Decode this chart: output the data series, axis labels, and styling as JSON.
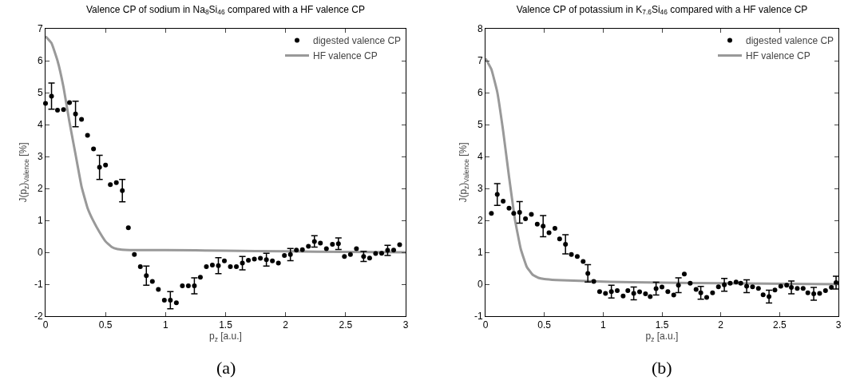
{
  "chart_data": [
    {
      "type": "scatter",
      "title": "Valence CP of sodium in Na$_{8}$Si$_{46}$ compared with a HF valence CP",
      "xlabel": "p$_{z}$ [a.u.]",
      "ylabel": "J(p$_{z}$)$_{Valence}$ [%]",
      "annotations": [
        "(a)"
      ],
      "xlim": [
        0,
        3
      ],
      "xticks": [
        0,
        0.5,
        1,
        1.5,
        2,
        2.5,
        3
      ],
      "ylim": [
        -2,
        7
      ],
      "yticks": [
        -2,
        -1,
        0,
        1,
        2,
        3,
        4,
        5,
        6,
        7
      ],
      "grid": false,
      "legend": "top right",
      "series": [
        {
          "name": "digested valence CP",
          "type": "scatter",
          "marker": "circle",
          "color": "#000000",
          "x": [
            0,
            0.05,
            0.1,
            0.15,
            0.2,
            0.25,
            0.3,
            0.35,
            0.4,
            0.45,
            0.5,
            0.54,
            0.59,
            0.64,
            0.69,
            0.74,
            0.79,
            0.84,
            0.89,
            0.94,
            0.99,
            1.04,
            1.09,
            1.14,
            1.19,
            1.24,
            1.29,
            1.34,
            1.39,
            1.44,
            1.49,
            1.54,
            1.59,
            1.64,
            1.69,
            1.74,
            1.79,
            1.84,
            1.89,
            1.94,
            1.99,
            2.04,
            2.09,
            2.14,
            2.19,
            2.24,
            2.29,
            2.34,
            2.39,
            2.44,
            2.49,
            2.54,
            2.59,
            2.65,
            2.7,
            2.75,
            2.8,
            2.85,
            2.9,
            2.95
          ],
          "values": [
            4.66,
            4.89,
            4.45,
            4.47,
            4.69,
            4.33,
            4.16,
            3.66,
            3.24,
            2.66,
            2.73,
            2.12,
            2.18,
            1.93,
            0.77,
            -0.07,
            -0.45,
            -0.73,
            -0.91,
            -1.16,
            -1.5,
            -1.5,
            -1.58,
            -1.05,
            -1.05,
            -1.05,
            -0.78,
            -0.45,
            -0.4,
            -0.42,
            -0.27,
            -0.45,
            -0.45,
            -0.34,
            -0.25,
            -0.21,
            -0.19,
            -0.23,
            -0.27,
            -0.34,
            -0.1,
            -0.07,
            0.07,
            0.08,
            0.19,
            0.34,
            0.29,
            0.11,
            0.25,
            0.27,
            -0.13,
            -0.07,
            0.11,
            -0.13,
            -0.18,
            -0.04,
            -0.03,
            0.06,
            0.07,
            0.24
          ],
          "errors": [
            null,
            0.41,
            null,
            null,
            null,
            0.4,
            null,
            null,
            null,
            0.38,
            null,
            null,
            null,
            0.35,
            null,
            null,
            null,
            0.3,
            null,
            null,
            null,
            0.27,
            null,
            null,
            null,
            0.25,
            null,
            null,
            null,
            0.25,
            null,
            null,
            null,
            0.21,
            null,
            null,
            null,
            0.2,
            null,
            null,
            null,
            0.19,
            null,
            null,
            null,
            0.18,
            null,
            null,
            null,
            0.18,
            null,
            null,
            null,
            0.16,
            null,
            null,
            null,
            0.16,
            null,
            null
          ]
        },
        {
          "name": "HF valence CP",
          "type": "line",
          "marker": "none",
          "line_style": "solid",
          "color": "#999999",
          "x": [
            0,
            0.05,
            0.1,
            0.15,
            0.2,
            0.25,
            0.3,
            0.35,
            0.4,
            0.45,
            0.5,
            0.55,
            0.6,
            0.7,
            1,
            1.5,
            2,
            2.5,
            3
          ],
          "values": [
            6.76,
            6.55,
            6,
            5.17,
            4.07,
            3.07,
            2.06,
            1.39,
            0.97,
            0.63,
            0.34,
            0.17,
            0.1,
            0.07,
            0.07,
            0.05,
            0.03,
            0.01,
            0
          ]
        }
      ]
    },
    {
      "type": "scatter",
      "title": "Valence CP of potassium in K$_{7.6}$Si$_{46}$ compared with a HF valence CP",
      "xlabel": "p$_{z}$ [a.u.]",
      "ylabel": "J(p$_{z}$)$_{Valence}$ [%]",
      "annotations": [
        "(b)"
      ],
      "xlim": [
        0,
        3
      ],
      "xticks": [
        0,
        0.5,
        1,
        1.5,
        2,
        2.5,
        3
      ],
      "ylim": [
        -1,
        8
      ],
      "yticks": [
        -1,
        0,
        1,
        2,
        3,
        4,
        5,
        6,
        7,
        8
      ],
      "grid": false,
      "legend": "top right",
      "series": [
        {
          "name": "digested valence CP",
          "type": "scatter",
          "marker": "circle",
          "color": "#000000",
          "x": [
            0.05,
            0.1,
            0.15,
            0.2,
            0.24,
            0.29,
            0.34,
            0.39,
            0.44,
            0.49,
            0.54,
            0.59,
            0.63,
            0.68,
            0.73,
            0.78,
            0.83,
            0.87,
            0.92,
            0.97,
            1.02,
            1.07,
            1.12,
            1.17,
            1.21,
            1.26,
            1.31,
            1.36,
            1.4,
            1.45,
            1.5,
            1.55,
            1.6,
            1.64,
            1.69,
            1.74,
            1.79,
            1.83,
            1.88,
            1.93,
            1.98,
            2.03,
            2.08,
            2.13,
            2.17,
            2.22,
            2.27,
            2.32,
            2.36,
            2.41,
            2.46,
            2.51,
            2.56,
            2.6,
            2.65,
            2.7,
            2.74,
            2.79,
            2.84,
            2.89,
            2.94,
            2.98
          ],
          "values": [
            2.22,
            2.81,
            2.6,
            2.38,
            2.22,
            2.25,
            2.05,
            2.19,
            1.88,
            1.82,
            1.61,
            1.75,
            1.42,
            1.25,
            0.93,
            0.87,
            0.71,
            0.34,
            0.09,
            -0.23,
            -0.29,
            -0.23,
            -0.2,
            -0.37,
            -0.2,
            -0.29,
            -0.24,
            -0.3,
            -0.39,
            -0.14,
            -0.09,
            -0.23,
            -0.34,
            -0.03,
            0.32,
            0.03,
            -0.16,
            -0.27,
            -0.41,
            -0.27,
            -0.08,
            -0.02,
            0.03,
            0.07,
            0.03,
            -0.06,
            -0.08,
            -0.13,
            -0.33,
            -0.39,
            -0.18,
            -0.06,
            -0.03,
            -0.1,
            -0.13,
            -0.13,
            -0.27,
            -0.3,
            -0.29,
            -0.2,
            -0.1,
            0.05
          ],
          "errors": [
            null,
            0.34,
            null,
            null,
            null,
            0.34,
            null,
            null,
            null,
            0.33,
            null,
            null,
            null,
            0.3,
            null,
            null,
            null,
            0.27,
            null,
            null,
            null,
            0.2,
            null,
            null,
            null,
            0.2,
            null,
            null,
            null,
            0.2,
            null,
            null,
            null,
            0.23,
            null,
            null,
            null,
            0.2,
            null,
            null,
            null,
            0.2,
            null,
            null,
            null,
            0.2,
            null,
            null,
            null,
            0.2,
            null,
            null,
            null,
            0.2,
            null,
            null,
            null,
            0.2,
            null,
            null,
            null,
            0.2
          ]
        },
        {
          "name": "HF valence CP",
          "type": "line",
          "marker": "none",
          "line_style": "solid",
          "color": "#999999",
          "x": [
            0,
            0.05,
            0.1,
            0.15,
            0.2,
            0.25,
            0.3,
            0.35,
            0.4,
            0.45,
            0.5,
            0.6,
            1,
            1.5,
            2,
            3
          ],
          "values": [
            7.07,
            6.73,
            6.02,
            4.8,
            3.37,
            2.03,
            1.1,
            0.55,
            0.3,
            0.2,
            0.16,
            0.13,
            0.08,
            0.05,
            0.03,
            0
          ]
        }
      ]
    }
  ]
}
